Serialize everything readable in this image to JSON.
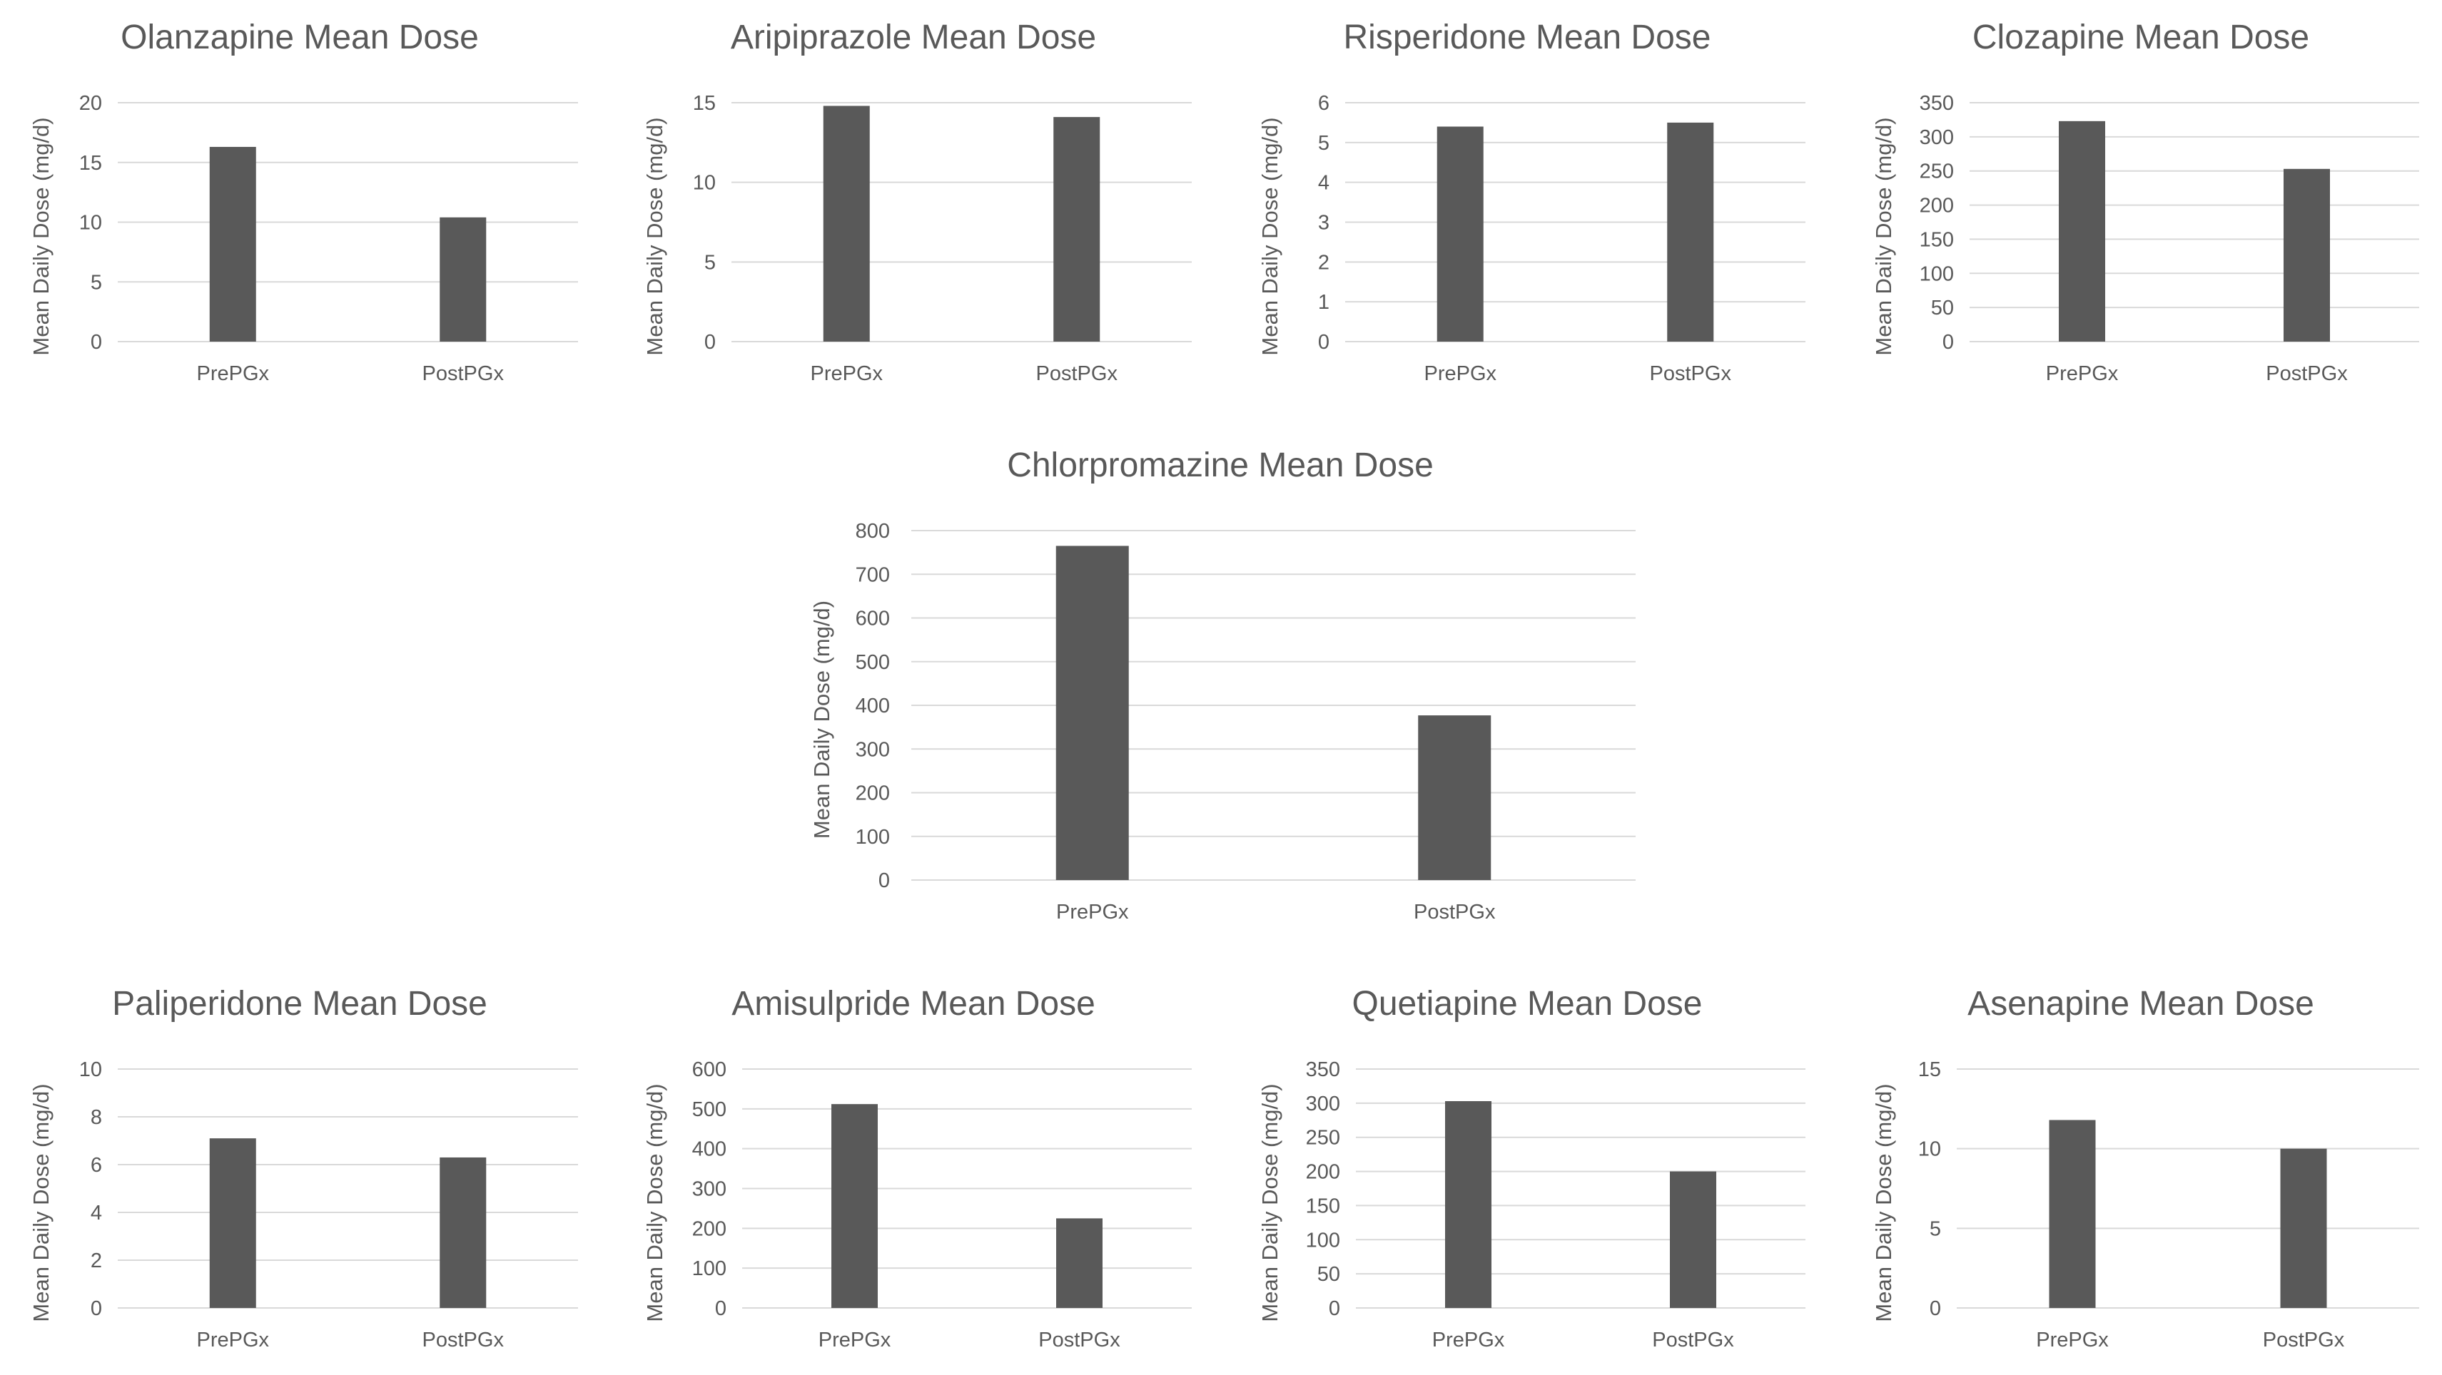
{
  "colors": {
    "bar": "#595959",
    "grid": "#d9d9d9",
    "text": "#595959",
    "background": "#ffffff"
  },
  "chart_data": [
    {
      "type": "bar",
      "title": "Olanzapine Mean Dose",
      "categories": [
        "PrePGx",
        "PostPGx"
      ],
      "values": [
        16.3,
        10.4
      ],
      "xlabel": "",
      "ylabel": "Mean Daily Dose (mg/d)",
      "ylim": [
        0,
        20
      ],
      "yticks": [
        "0",
        "5",
        "10",
        "15",
        "20"
      ],
      "grid": true,
      "legend": "none"
    },
    {
      "type": "bar",
      "title": "Aripiprazole Mean Dose",
      "categories": [
        "PrePGx",
        "PostPGx"
      ],
      "values": [
        14.8,
        14.1
      ],
      "xlabel": "",
      "ylabel": "Mean Daily Dose (mg/d)",
      "ylim": [
        0,
        15
      ],
      "yticks": [
        "0",
        "5",
        "10",
        "15"
      ],
      "grid": true,
      "legend": "none"
    },
    {
      "type": "bar",
      "title": "Risperidone Mean Dose",
      "categories": [
        "PrePGx",
        "PostPGx"
      ],
      "values": [
        5.4,
        5.5
      ],
      "xlabel": "",
      "ylabel": "Mean Daily Dose (mg/d)",
      "ylim": [
        0,
        6
      ],
      "yticks": [
        "0",
        "1",
        "2",
        "3",
        "4",
        "5",
        "6"
      ],
      "grid": true,
      "legend": "none"
    },
    {
      "type": "bar",
      "title": "Clozapine Mean Dose",
      "categories": [
        "PrePGx",
        "PostPGx"
      ],
      "values": [
        323,
        253
      ],
      "xlabel": "",
      "ylabel": "Mean Daily Dose (mg/d)",
      "ylim": [
        0,
        350
      ],
      "yticks": [
        "0",
        "50",
        "100",
        "150",
        "200",
        "250",
        "300",
        "350"
      ],
      "grid": true,
      "legend": "none"
    },
    {
      "type": "bar",
      "title": "Chlorpromazine Mean Dose",
      "categories": [
        "PrePGx",
        "PostPGx"
      ],
      "values": [
        765,
        377
      ],
      "xlabel": "",
      "ylabel": "Mean Daily Dose (mg/d)",
      "ylim": [
        0,
        800
      ],
      "yticks": [
        "0",
        "100",
        "200",
        "300",
        "400",
        "500",
        "600",
        "700",
        "800"
      ],
      "grid": true,
      "legend": "none"
    },
    {
      "type": "bar",
      "title": "Paliperidone Mean Dose",
      "categories": [
        "PrePGx",
        "PostPGx"
      ],
      "values": [
        7.1,
        6.3
      ],
      "xlabel": "",
      "ylabel": "Mean Daily Dose (mg/d)",
      "ylim": [
        0,
        10
      ],
      "yticks": [
        "0",
        "2",
        "4",
        "6",
        "8",
        "10"
      ],
      "grid": true,
      "legend": "none"
    },
    {
      "type": "bar",
      "title": "Amisulpride Mean Dose",
      "categories": [
        "PrePGx",
        "PostPGx"
      ],
      "values": [
        512,
        225
      ],
      "xlabel": "",
      "ylabel": "Mean Daily Dose (mg/d)",
      "ylim": [
        0,
        600
      ],
      "yticks": [
        "0",
        "100",
        "200",
        "300",
        "400",
        "500",
        "600"
      ],
      "grid": true,
      "legend": "none"
    },
    {
      "type": "bar",
      "title": "Quetiapine Mean Dose",
      "categories": [
        "PrePGx",
        "PostPGx"
      ],
      "values": [
        303,
        200
      ],
      "xlabel": "",
      "ylabel": "Mean Daily Dose (mg/d)",
      "ylim": [
        0,
        350
      ],
      "yticks": [
        "0",
        "50",
        "100",
        "150",
        "200",
        "250",
        "300",
        "350"
      ],
      "grid": true,
      "legend": "none"
    },
    {
      "type": "bar",
      "title": "Asenapine Mean Dose",
      "categories": [
        "PrePGx",
        "PostPGx"
      ],
      "values": [
        11.8,
        10.0
      ],
      "xlabel": "",
      "ylabel": "Mean Daily Dose (mg/d)",
      "ylim": [
        0,
        15
      ],
      "yticks": [
        "0",
        "5",
        "10",
        "15"
      ],
      "grid": true,
      "legend": "none"
    }
  ]
}
